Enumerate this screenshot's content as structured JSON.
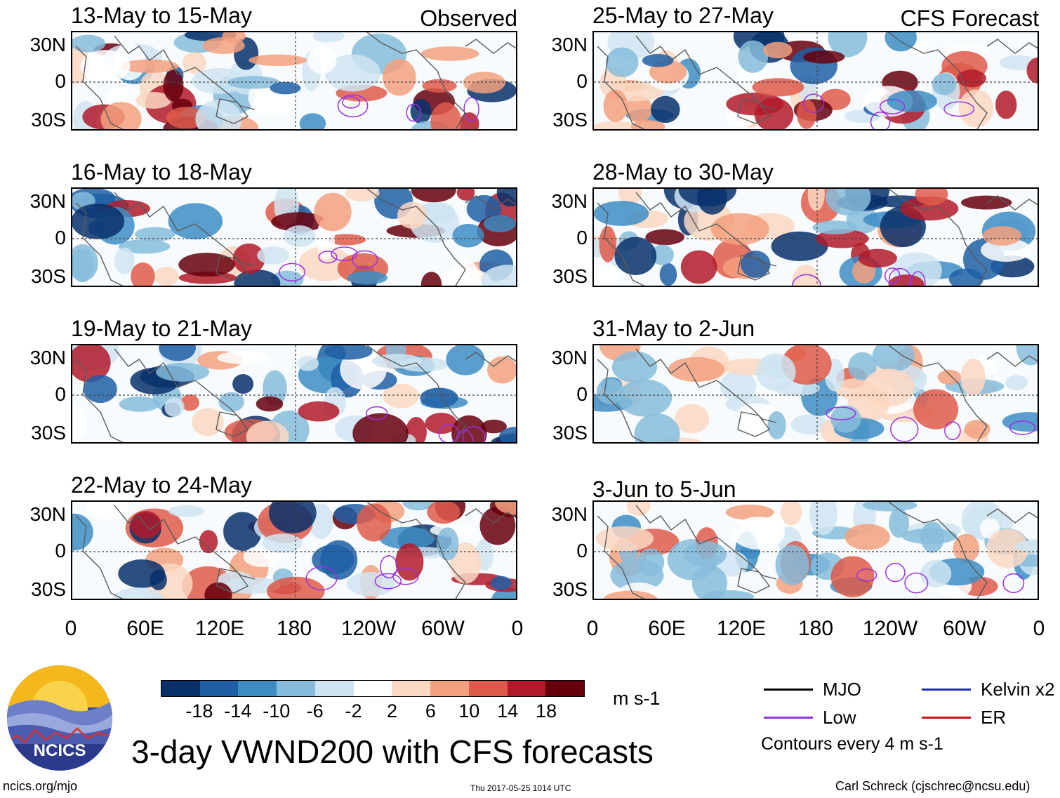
{
  "panels": [
    {
      "title": "13-May to 15-May",
      "header": "Observed",
      "y_labels": [
        "30N",
        "0",
        "30S"
      ]
    },
    {
      "title": "25-May to 27-May",
      "header": "CFS Forecast",
      "y_labels": [
        "30N",
        "0",
        "30S"
      ]
    },
    {
      "title": "16-May to 18-May",
      "header": "",
      "y_labels": [
        "30N",
        "0",
        "30S"
      ]
    },
    {
      "title": "28-May to 30-May",
      "header": "",
      "y_labels": [
        "30N",
        "0",
        "30S"
      ]
    },
    {
      "title": "19-May to 21-May",
      "header": "",
      "y_labels": [
        "30N",
        "0",
        "30S"
      ]
    },
    {
      "title": "31-May to 2-Jun",
      "header": "",
      "y_labels": [
        "30N",
        "0",
        "30S"
      ]
    },
    {
      "title": "22-May to 24-May",
      "header": "",
      "y_labels": [
        "30N",
        "0",
        "30S"
      ]
    },
    {
      "title": "3-Jun to 5-Jun",
      "header": "",
      "y_labels": [
        "30N",
        "0",
        "30S"
      ]
    }
  ],
  "x_axis": {
    "left": [
      "0",
      "60E",
      "120E",
      "180",
      "120W",
      "60W",
      "0"
    ],
    "right": [
      "0",
      "60E",
      "120E",
      "180",
      "120W",
      "60W",
      "0"
    ]
  },
  "colorbar": {
    "colors": [
      "#08306b",
      "#1f5fa6",
      "#3d8dc4",
      "#86bcdc",
      "#cfe4f1",
      "#ffffff",
      "#fcd7c2",
      "#f3a07e",
      "#de5a4a",
      "#b11a2a",
      "#67000d"
    ],
    "labels": [
      "-18",
      "-14",
      "-10",
      "-6",
      "-2",
      "2",
      "6",
      "10",
      "14",
      "18"
    ],
    "units": "m s-1"
  },
  "legend": {
    "items": [
      {
        "label": "MJO",
        "color": "#000000"
      },
      {
        "label": "Kelvin x2",
        "color": "#1f2ea8"
      },
      {
        "label": "Low",
        "color": "#9b30e0"
      },
      {
        "label": "ER",
        "color": "#d01010"
      }
    ],
    "note": "Contours every 4 m s-1"
  },
  "main_title": "3-day VWND200 with CFS forecasts",
  "logo_text": "NCICS",
  "footer": {
    "left": "ncics.org/mjo",
    "center": "Thu 2017-05-25 1014 UTC",
    "right": "Carl Schreck (cjschrec@ncsu.edu)"
  }
}
